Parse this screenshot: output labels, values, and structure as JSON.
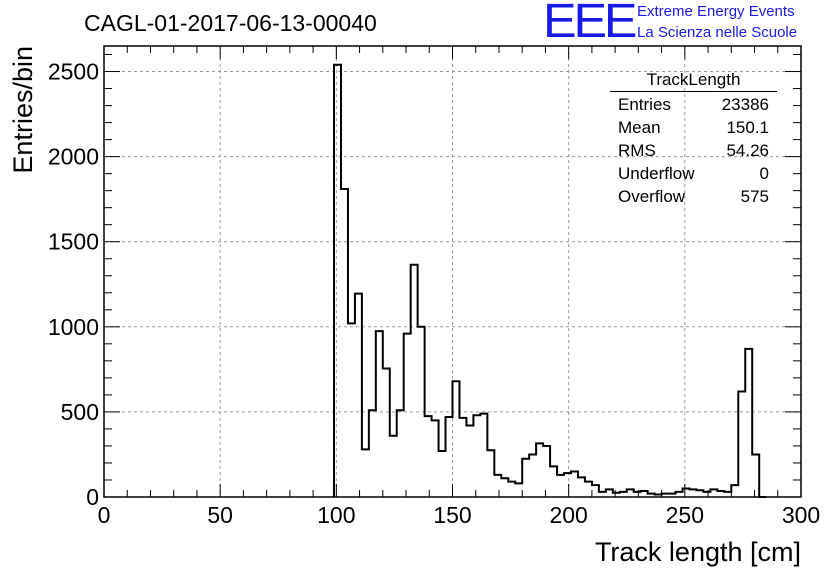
{
  "header": {
    "run_title": "CAGL-01-2017-06-13-00040",
    "logo_text": "EEE",
    "logo_line1": "Extreme Energy Events",
    "logo_line2": "La Scienza nelle Scuole",
    "logo_color": "#1a1ae6"
  },
  "stats_box": {
    "title": "TrackLength",
    "rows": [
      {
        "label": "Entries",
        "value": "23386"
      },
      {
        "label": "Mean",
        "value": "150.1"
      },
      {
        "label": "RMS",
        "value": "54.26"
      },
      {
        "label": "Underflow",
        "value": "0"
      },
      {
        "label": "Overflow",
        "value": "575"
      }
    ]
  },
  "chart_data": {
    "type": "histogram",
    "xlabel": "Track length [cm]",
    "ylabel": "Entries/bin",
    "xlim": [
      0,
      300
    ],
    "ylim": [
      0,
      2650
    ],
    "grid": true,
    "bin_width": 3,
    "x_ticks": [
      0,
      50,
      100,
      150,
      200,
      250,
      300
    ],
    "y_ticks": [
      0,
      500,
      1000,
      1500,
      2000,
      2500
    ],
    "bins_start": 99,
    "values": [
      2540,
      1810,
      1020,
      1195,
      280,
      510,
      975,
      755,
      360,
      510,
      960,
      1365,
      1000,
      475,
      450,
      270,
      470,
      680,
      465,
      420,
      480,
      490,
      275,
      130,
      110,
      90,
      80,
      225,
      250,
      315,
      300,
      180,
      130,
      140,
      150,
      115,
      90,
      70,
      30,
      45,
      25,
      30,
      45,
      30,
      35,
      20,
      15,
      20,
      20,
      30,
      50,
      45,
      40,
      30,
      45,
      35,
      30,
      70,
      620,
      870,
      250,
      0
    ]
  }
}
